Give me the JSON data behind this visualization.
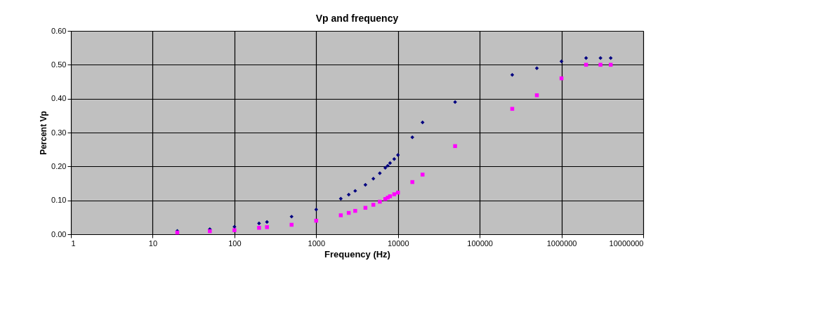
{
  "chart_data": {
    "type": "scatter",
    "title": "Vp and frequency",
    "xlabel": "Frequency (Hz)",
    "ylabel": "Percent Vp",
    "x": [
      20,
      50,
      100,
      200,
      250,
      500,
      1000,
      2000,
      2500,
      3000,
      4000,
      5000,
      6000,
      7000,
      7500,
      8000,
      9000,
      10000,
      15000,
      20000,
      50000,
      250000,
      500000,
      1000000,
      2000000,
      3000000,
      4000000
    ],
    "series": [
      {
        "color": "#000080",
        "marker": "diamond",
        "values": [
          0.01,
          0.015,
          0.022,
          0.032,
          0.036,
          0.052,
          0.073,
          0.105,
          0.117,
          0.128,
          0.146,
          0.164,
          0.18,
          0.196,
          0.202,
          0.21,
          0.222,
          0.234,
          0.286,
          0.33,
          0.39,
          0.47,
          0.49,
          0.51,
          0.52,
          0.52,
          0.52
        ]
      },
      {
        "color": "#ff00ff",
        "marker": "square",
        "values": [
          0.005,
          0.009,
          0.012,
          0.019,
          0.021,
          0.028,
          0.04,
          0.056,
          0.063,
          0.069,
          0.078,
          0.087,
          0.096,
          0.104,
          0.108,
          0.112,
          0.118,
          0.123,
          0.154,
          0.176,
          0.26,
          0.37,
          0.41,
          0.46,
          0.5,
          0.5,
          0.5
        ]
      }
    ],
    "log": "x",
    "xlim": [
      1,
      10000000
    ],
    "xticks": [
      1,
      10,
      100,
      1000,
      10000,
      100000,
      1000000,
      10000000
    ],
    "ylim": [
      0,
      0.6
    ],
    "yticks": [
      {
        "value": 0,
        "label": "0.00"
      },
      {
        "value": 0.1,
        "label": "0.10"
      },
      {
        "value": 0.2,
        "label": "0.20"
      },
      {
        "value": 0.3,
        "label": "0.30"
      },
      {
        "value": 0.4,
        "label": "0.40"
      },
      {
        "value": 0.5,
        "label": "0.50"
      },
      {
        "value": 0.6,
        "label": "0.60"
      }
    ],
    "grid": true
  }
}
